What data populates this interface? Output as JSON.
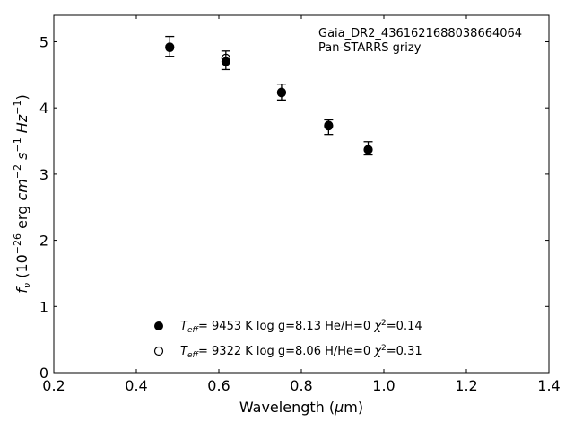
{
  "chart_data": {
    "type": "scatter",
    "xlabel": "Wavelength (μm)",
    "ylabel": "f_ν (10^-26 erg cm^-2 s^-1 Hz^-1)",
    "xlim": [
      0.2,
      1.4
    ],
    "ylim": [
      0,
      5.4
    ],
    "xticks": [
      "0.2",
      "0.4",
      "0.6",
      "0.8",
      "1.0",
      "1.2",
      "1.4"
    ],
    "yticks": [
      "0",
      "1",
      "2",
      "3",
      "4",
      "5"
    ],
    "grid": false,
    "annotations": [
      "Gaia_DR2_4361621688038664064",
      "Pan-STARRS grizy"
    ],
    "observed": {
      "x": [
        0.481,
        0.617,
        0.752,
        0.866,
        0.962
      ],
      "y": [
        4.93,
        4.72,
        4.24,
        3.71,
        3.39
      ],
      "yerr": [
        0.15,
        0.14,
        0.12,
        0.11,
        0.1
      ]
    },
    "series": [
      {
        "marker": "filled-circle",
        "label": {
          "teff": "9453 K",
          "logg": "log g=8.13",
          "comp": "He/H=0",
          "chi2": "=0.14"
        },
        "x": [
          0.481,
          0.617,
          0.752,
          0.866,
          0.962
        ],
        "y": [
          4.91,
          4.7,
          4.24,
          3.74,
          3.37
        ]
      },
      {
        "marker": "open-circle",
        "label": {
          "teff": "9322 K",
          "logg": "log g=8.06",
          "comp": "H/He=0",
          "chi2": "=0.31"
        },
        "x": [
          0.481,
          0.617,
          0.752,
          0.866,
          0.962
        ],
        "y": [
          4.92,
          4.75,
          4.23,
          3.73,
          3.37
        ]
      }
    ]
  }
}
